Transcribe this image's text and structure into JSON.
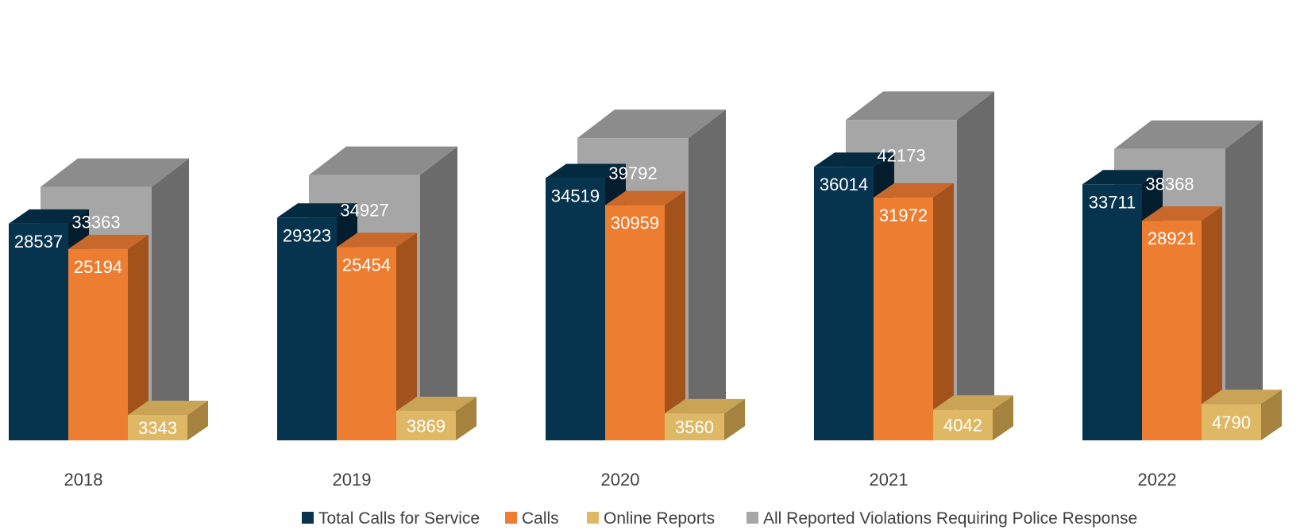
{
  "chart_data": {
    "type": "bar",
    "title": "",
    "xlabel": "",
    "ylabel": "",
    "ylim": [
      0,
      44000
    ],
    "grid": false,
    "legend_position": "bottom",
    "categories": [
      "2018",
      "2019",
      "2020",
      "2021",
      "2022"
    ],
    "series": [
      {
        "name": "Total Calls for Service",
        "values": [
          28537,
          29323,
          34519,
          36014,
          33711
        ]
      },
      {
        "name": "Calls",
        "values": [
          25194,
          25454,
          30959,
          31972,
          28921
        ]
      },
      {
        "name": "Online Reports",
        "values": [
          3343,
          3869,
          3560,
          4042,
          4790
        ]
      },
      {
        "name": "All Reported Violations Requiring Police Response",
        "values": [
          33363,
          34927,
          39792,
          42173,
          38368
        ]
      }
    ],
    "colors": {
      "Total Calls for Service": {
        "front": "#06344f",
        "top": "#042a40",
        "side": "#031d2d"
      },
      "Calls": {
        "front": "#ed7d31",
        "top": "#c8682a",
        "side": "#a3521c"
      },
      "Online Reports": {
        "front": "#dfb866",
        "top": "#c9a457",
        "side": "#a5823d"
      },
      "All Reported Violations Requiring Police Response": {
        "front": "#a6a6a6",
        "top": "#8c8c8c",
        "side": "#6b6b6b"
      }
    }
  }
}
